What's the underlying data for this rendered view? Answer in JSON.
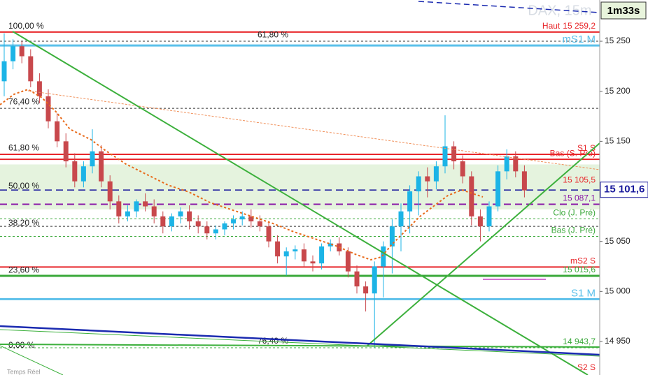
{
  "chart_data": {
    "type": "candlestick",
    "watermark": "DAX, 15m",
    "timer": "1m33s",
    "status": "Temps Réel",
    "last": {
      "value": 15101.6,
      "label": "15 101,6"
    },
    "ylim": [
      14916.5,
      15291.2
    ],
    "yticks": [
      {
        "value": 15250,
        "label": "15 250"
      },
      {
        "value": 15200,
        "label": "15 200"
      },
      {
        "value": 15150,
        "label": "15 150"
      },
      {
        "value": 15050,
        "label": "15 050"
      },
      {
        "value": 15000,
        "label": "15 000"
      },
      {
        "value": 14950,
        "label": "14 950"
      }
    ],
    "up_color": "#1cb4e6",
    "down_color": "#c8484c",
    "zone": [
      15082,
      15126.9
    ],
    "open": [
      15210,
      15230,
      15245,
      15235,
      15210,
      15195,
      15170,
      15150,
      15130,
      15110,
      15125,
      15140,
      15110,
      15090,
      15075,
      15080,
      15090,
      15085,
      15075,
      15065,
      15075,
      15080,
      15070,
      15065,
      15058,
      15062,
      15068,
      15072,
      15075,
      15070,
      15065,
      15050,
      15035,
      15040,
      15042,
      15030,
      15028,
      15045,
      15048,
      15040,
      15020,
      15005,
      14998,
      15025,
      15045,
      15065,
      15080,
      15100,
      15115,
      15110,
      15125,
      15145,
      15130,
      15115,
      15075,
      15065,
      15085,
      15120,
      15135,
      15120
    ],
    "high": [
      15258,
      15252,
      15250,
      15242,
      15218,
      15202,
      15178,
      15158,
      15138,
      15130,
      15162,
      15146,
      15116,
      15096,
      15086,
      15092,
      15098,
      15092,
      15080,
      15078,
      15084,
      15086,
      15076,
      15070,
      15066,
      15070,
      15076,
      15080,
      15082,
      15076,
      15070,
      15056,
      15044,
      15046,
      15048,
      15036,
      15048,
      15052,
      15054,
      15044,
      15026,
      15010,
      15030,
      15050,
      15072,
      15088,
      15106,
      15120,
      15124,
      15130,
      15176,
      15150,
      15136,
      15120,
      15082,
      15090,
      15126,
      15142,
      15140,
      15126
    ],
    "low": [
      15195,
      15222,
      15228,
      15204,
      15188,
      15163,
      15144,
      15124,
      15104,
      15104,
      15118,
      15104,
      15082,
      15068,
      15070,
      15074,
      15080,
      15068,
      15058,
      15060,
      15068,
      15062,
      15058,
      15052,
      15052,
      15056,
      15062,
      15066,
      15064,
      15060,
      15044,
      15028,
      15016,
      15032,
      15024,
      15020,
      15022,
      15040,
      15036,
      15014,
      14998,
      14980,
      14944,
      14994,
      15018,
      15040,
      15058,
      15076,
      15094,
      15102,
      15118,
      15122,
      15108,
      15066,
      15050,
      15060,
      15080,
      15112,
      15114,
      15094
    ],
    "close": [
      15230,
      15245,
      15235,
      15210,
      15195,
      15170,
      15150,
      15130,
      15110,
      15125,
      15140,
      15110,
      15090,
      15075,
      15080,
      15090,
      15085,
      15075,
      15065,
      15075,
      15080,
      15070,
      15065,
      15058,
      15062,
      15068,
      15072,
      15075,
      15070,
      15065,
      15050,
      15035,
      15040,
      15042,
      15030,
      15028,
      15045,
      15048,
      15040,
      15020,
      15005,
      14998,
      15025,
      15045,
      15065,
      15080,
      15100,
      15115,
      15110,
      15125,
      15145,
      15130,
      15115,
      15075,
      15065,
      15085,
      15120,
      15135,
      15120,
      15101
    ],
    "levels": [
      {
        "label": "Haut",
        "value_label": "15 259,2",
        "value": 15259.2,
        "color": "#e8262a",
        "width": 2
      },
      {
        "value": 15250,
        "color": "#333333",
        "dash": "3,3",
        "width": 1
      },
      {
        "label": "mS1 M",
        "value": 15245.8,
        "color": "#5bc0ea",
        "width": 3
      },
      {
        "value": 15183,
        "color": "#333333",
        "dash": "3,3",
        "width": 1
      },
      {
        "label": "S1 S",
        "value": 15137,
        "color": "#e8262a",
        "width": 2
      },
      {
        "label": "Bas (S. Pré)",
        "value": 15132,
        "color": "#e8262a",
        "width": 2
      },
      {
        "value_label": "15 105,5",
        "value": 15105.5,
        "color": "#e8262a",
        "width": 0
      },
      {
        "value": 15101.3,
        "color": "#1a1a9c",
        "dash": "10,6",
        "width": 1.5
      },
      {
        "value_label": "15 087,1",
        "value": 15087.1,
        "color": "#8a1aa8",
        "dash": "10,6",
        "width": 2
      },
      {
        "label": "Clo (J. Pré)",
        "value": 15072.6,
        "color": "#3aa83a",
        "dash": "3,3",
        "width": 1
      },
      {
        "value": 15065,
        "color": "#333333",
        "dash": "3,3",
        "width": 1
      },
      {
        "label": "Bas (J. Pré)",
        "value": 15055,
        "color": "#3aa83a",
        "dash": "3,3",
        "width": 1
      },
      {
        "label": "mS2 S",
        "value": 15024.4,
        "color": "#e8262a",
        "width": 2
      },
      {
        "value_label": "15 015,6",
        "value": 15015.6,
        "color": "#3aa83a",
        "width": 3
      },
      {
        "label": "S1 M",
        "value": 14992.3,
        "color": "#5bc0ea",
        "width": 3
      },
      {
        "value_label": "14 943,7",
        "value": 14943.7,
        "color": "#3aa83a",
        "dash": "3,3",
        "width": 1
      },
      {
        "label": "S2 S",
        "value": 14918,
        "color": "#e8262a",
        "width": 0
      }
    ],
    "fib": [
      {
        "label": "100,00 %",
        "value": 15264.7
      },
      {
        "label": "76,40 %",
        "value": 15189
      },
      {
        "label": "61,80 %",
        "value": 15143
      },
      {
        "label": "50,00 %",
        "value": 15105
      },
      {
        "label": "38,20 %",
        "value": 15068
      },
      {
        "label": "23,60 %",
        "value": 15021
      },
      {
        "label": "0,00 %",
        "value": 14946
      }
    ],
    "fib_upper": [
      {
        "label": "61,80 %",
        "value": 15256
      },
      {
        "label": "76,40 %",
        "value": 14950
      }
    ]
  }
}
